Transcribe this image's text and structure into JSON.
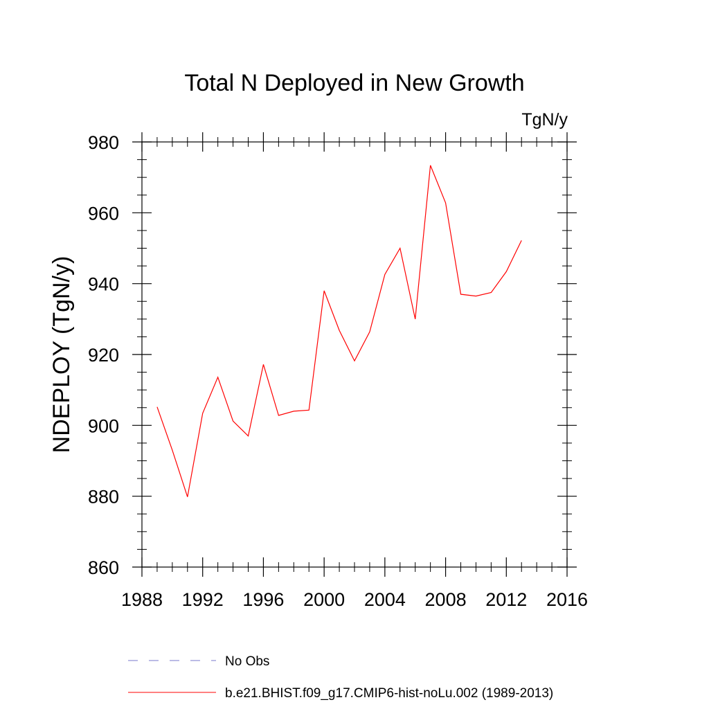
{
  "chart_data": {
    "type": "line",
    "title": "Total N Deployed in New Growth",
    "units_label": "TgN/y",
    "ylabel": "NDEPLOY  (TgN/y)",
    "xlabel": "",
    "xlim": [
      1988,
      2016
    ],
    "ylim": [
      860,
      980
    ],
    "x_ticks": [
      1988,
      1992,
      1996,
      2000,
      2004,
      2008,
      2012,
      2016
    ],
    "y_ticks": [
      860,
      880,
      900,
      920,
      940,
      960,
      980
    ],
    "x_minor_step": 1,
    "y_minor_step": 5,
    "grid": false,
    "legend_position": "bottom",
    "series": [
      {
        "name": "b.e21.BHIST.f09_g17.CMIP6-hist-noLu.002 (1989-2013)",
        "color": "#ff0000",
        "line_style": "solid",
        "x": [
          1989,
          1990,
          1991,
          1992,
          1993,
          1994,
          1995,
          1996,
          1997,
          1998,
          1999,
          2000,
          2001,
          2002,
          2003,
          2004,
          2005,
          2006,
          2007,
          2008,
          2009,
          2010,
          2011,
          2012,
          2013
        ],
        "values": [
          905.2,
          893.0,
          879.8,
          903.4,
          913.6,
          901.2,
          897.0,
          917.2,
          902.8,
          904.0,
          904.3,
          938.0,
          926.8,
          918.2,
          926.4,
          942.6,
          950.0,
          930.0,
          973.4,
          962.8,
          937.0,
          936.5,
          937.5,
          943.4,
          952.2
        ]
      }
    ],
    "legend": [
      {
        "label": "No Obs",
        "color": "#7777cc",
        "line_style": "dashed"
      },
      {
        "label": "b.e21.BHIST.f09_g17.CMIP6-hist-noLu.002 (1989-2013)",
        "color": "#ff0000",
        "line_style": "solid"
      }
    ]
  }
}
